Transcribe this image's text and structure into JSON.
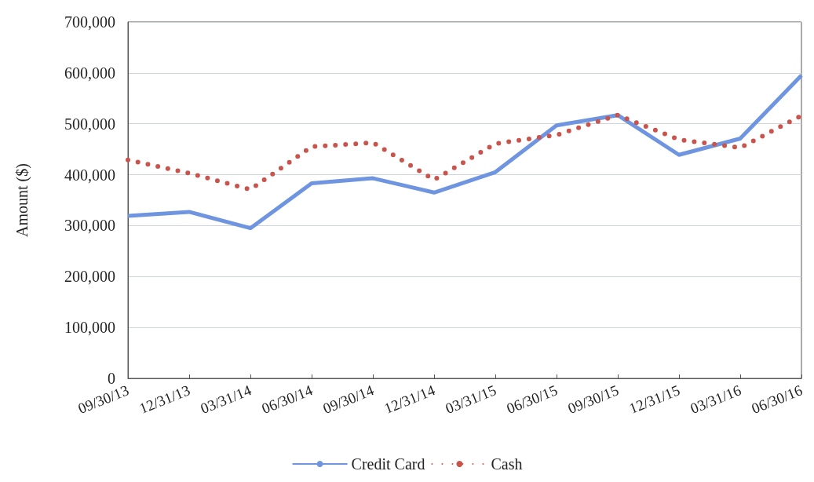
{
  "chart_data": {
    "type": "line",
    "ylabel": "Amount ($)",
    "categories": [
      "09/30/13",
      "12/31/13",
      "03/31/14",
      "06/30/14",
      "09/30/14",
      "12/31/14",
      "03/31/15",
      "06/30/15",
      "09/30/15",
      "12/31/15",
      "03/31/16",
      "06/30/16"
    ],
    "series": [
      {
        "name": "Credit Card",
        "color": "#6f95e0",
        "line_style": "solid",
        "values": [
          319000,
          327000,
          295000,
          383000,
          393000,
          365000,
          405000,
          497000,
          517000,
          439000,
          471000,
          595000
        ]
      },
      {
        "name": "Cash",
        "color": "#c9544d",
        "line_style": "dotted",
        "values": [
          429000,
          403000,
          371000,
          455000,
          463000,
          390000,
          461000,
          478000,
          517000,
          469000,
          453000,
          516000
        ]
      }
    ],
    "ylim": [
      0,
      700000
    ],
    "yticks": [
      0,
      {
        "value": 100000,
        "label": "100,000"
      },
      {
        "value": 200000,
        "label": "200,000"
      },
      {
        "value": 300000,
        "label": "300,000"
      },
      {
        "value": 400000,
        "label": "400,000"
      },
      {
        "value": 500000,
        "label": "500,000"
      },
      {
        "value": 600000,
        "label": "600,000"
      },
      {
        "value": 700000,
        "label": "700,000"
      }
    ],
    "grid": "y",
    "legend": "bottom",
    "marker": "none"
  }
}
